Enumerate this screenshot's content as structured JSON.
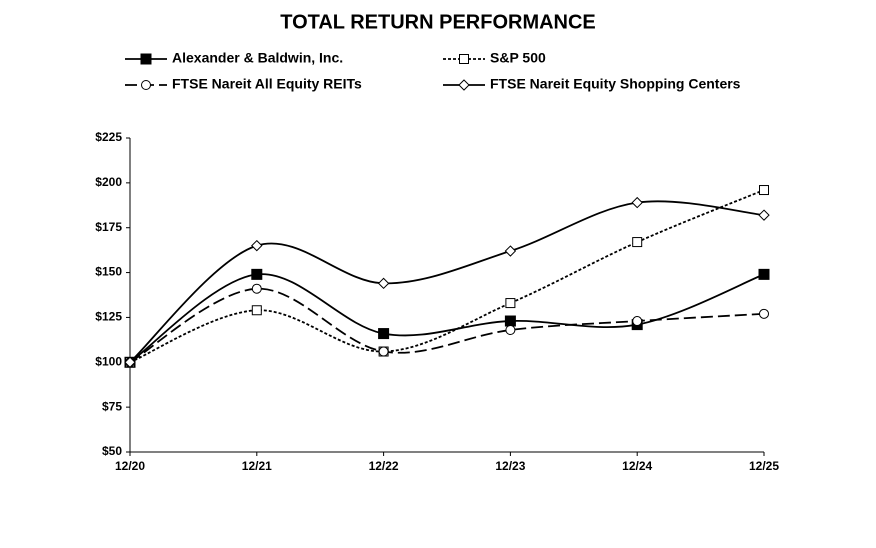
{
  "chart_data": {
    "type": "line",
    "title": "TOTAL RETURN PERFORMANCE",
    "categories": [
      "12/20",
      "12/21",
      "12/22",
      "12/23",
      "12/24",
      "12/25"
    ],
    "series": [
      {
        "name": "Alexander & Baldwin, Inc.",
        "color": "#000000",
        "dash": "solid",
        "marker": "filled-square",
        "values": [
          100,
          149,
          116,
          123,
          121,
          149
        ]
      },
      {
        "name": "S&P 500",
        "color": "#000000",
        "dash": "dotted",
        "marker": "open-square",
        "values": [
          100,
          129,
          106,
          133,
          167,
          196
        ]
      },
      {
        "name": "FTSE Nareit All Equity REITs",
        "color": "#000000",
        "dash": "dashed",
        "marker": "open-circle",
        "values": [
          100,
          141,
          106,
          118,
          123,
          127
        ]
      },
      {
        "name": "FTSE Nareit Equity Shopping Centers",
        "color": "#000000",
        "dash": "solid",
        "marker": "open-diamond",
        "values": [
          100,
          165,
          144,
          162,
          189,
          182
        ]
      }
    ],
    "ylim": [
      50,
      225
    ],
    "yticks": [
      {
        "value": 50,
        "label": "$50"
      },
      {
        "value": 75,
        "label": "$75"
      },
      {
        "value": 100,
        "label": "$100"
      },
      {
        "value": 125,
        "label": "$125"
      },
      {
        "value": 150,
        "label": "$150"
      },
      {
        "value": 175,
        "label": "$175"
      },
      {
        "value": 200,
        "label": "$200"
      },
      {
        "value": 225,
        "label": "$225"
      }
    ],
    "grid": false
  }
}
